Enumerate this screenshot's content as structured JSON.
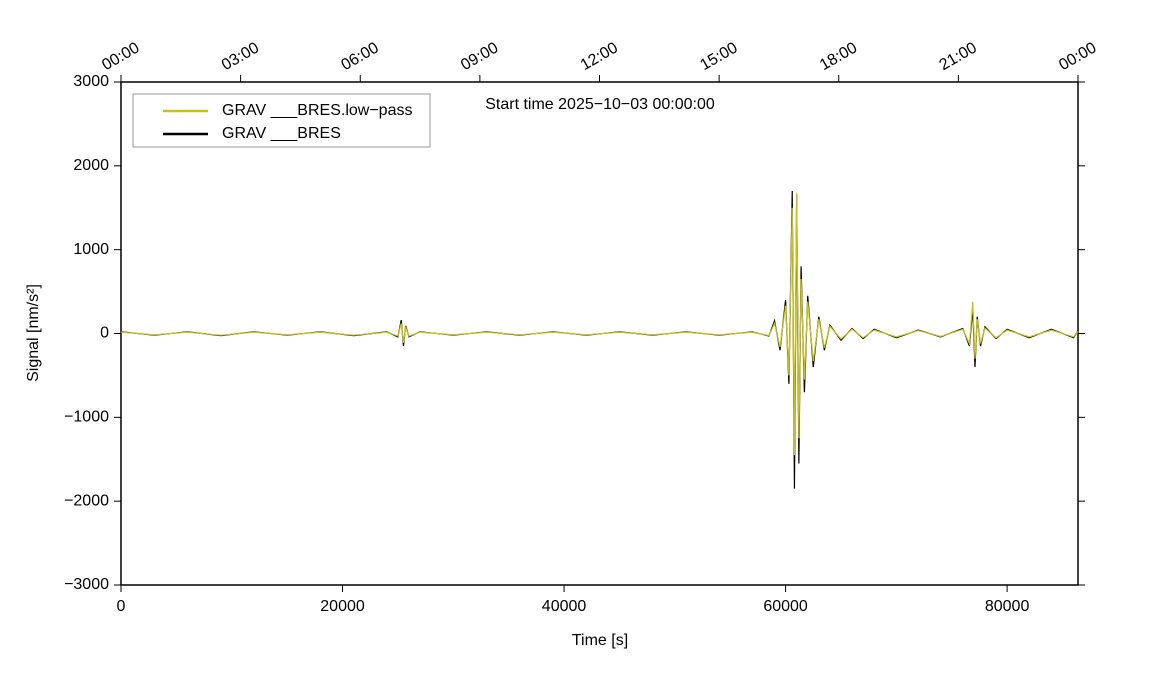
{
  "chart_data": {
    "type": "line",
    "annotation": "Start time 2025−10−03 00:00:00",
    "x_label": "Time [s]",
    "y_label": "Signal [nm/s²]",
    "xlim": [
      0,
      86400
    ],
    "ylim": [
      -3000,
      3000
    ],
    "xticks": [
      0,
      20000,
      40000,
      60000,
      80000
    ],
    "x2ticks": [
      {
        "value": 0,
        "label": "00:00"
      },
      {
        "value": 10800,
        "label": "03:00"
      },
      {
        "value": 21600,
        "label": "06:00"
      },
      {
        "value": 32400,
        "label": "09:00"
      },
      {
        "value": 43200,
        "label": "12:00"
      },
      {
        "value": 54000,
        "label": "15:00"
      },
      {
        "value": 64800,
        "label": "18:00"
      },
      {
        "value": 75600,
        "label": "21:00"
      },
      {
        "value": 86400,
        "label": "00:00"
      }
    ],
    "yticks": [
      {
        "value": -3000,
        "label": "−3000"
      },
      {
        "value": -2000,
        "label": "−2000"
      },
      {
        "value": -1000,
        "label": "−1000"
      },
      0,
      1000,
      2000,
      3000
    ],
    "legend": "upper left",
    "x": [
      0,
      3000,
      6000,
      9000,
      12000,
      15000,
      18000,
      21000,
      24000,
      25000,
      25300,
      25500,
      25700,
      26000,
      27000,
      30000,
      33000,
      36000,
      39000,
      42000,
      45000,
      48000,
      51000,
      54000,
      57000,
      58500,
      59000,
      59500,
      60000,
      60300,
      60600,
      60800,
      61000,
      61200,
      61400,
      61700,
      62000,
      62500,
      63000,
      63500,
      64000,
      65000,
      66000,
      67000,
      68000,
      70000,
      72000,
      74000,
      76000,
      76600,
      76900,
      77100,
      77300,
      77600,
      78000,
      79000,
      80000,
      82000,
      84000,
      86000,
      86400
    ],
    "series": [
      {
        "name": "GRAV ___BRES",
        "color": "#000000",
        "values": [
          20,
          -20,
          20,
          -25,
          20,
          -20,
          20,
          -25,
          20,
          -40,
          160,
          -150,
          90,
          -40,
          20,
          -20,
          20,
          -20,
          20,
          -20,
          20,
          -20,
          20,
          -20,
          20,
          -30,
          150,
          -200,
          400,
          -600,
          1700,
          -1850,
          1650,
          -1550,
          800,
          -700,
          450,
          -400,
          200,
          -200,
          100,
          -80,
          60,
          -60,
          50,
          -50,
          40,
          -40,
          60,
          -150,
          300,
          -400,
          200,
          -150,
          80,
          -60,
          50,
          -50,
          50,
          -50,
          30
        ]
      },
      {
        "name": "GRAV ___BRES.low−pass",
        "color": "#c8c21a",
        "values": [
          15,
          -15,
          15,
          -20,
          15,
          -15,
          15,
          -20,
          15,
          -30,
          120,
          -110,
          70,
          -30,
          15,
          -15,
          15,
          -15,
          15,
          -15,
          15,
          -15,
          15,
          -15,
          15,
          -25,
          120,
          -160,
          330,
          -500,
          1500,
          -1450,
          1680,
          -1250,
          650,
          -550,
          380,
          -330,
          170,
          -170,
          85,
          -65,
          50,
          -50,
          40,
          -40,
          35,
          -35,
          50,
          -120,
          380,
          -300,
          170,
          -120,
          65,
          -50,
          40,
          -40,
          40,
          -40,
          25
        ]
      }
    ]
  }
}
